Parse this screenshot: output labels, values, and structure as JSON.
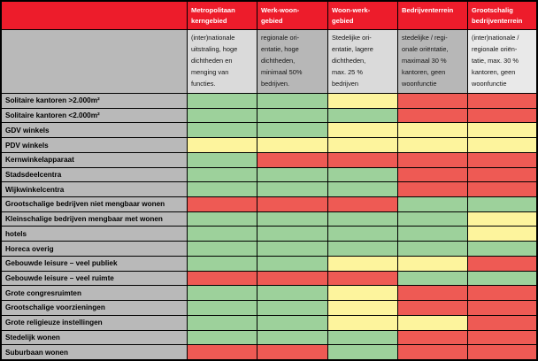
{
  "palette": {
    "header_red": "#ed1c2b",
    "label_gray": "#b9b9b9",
    "green": "#9dd19b",
    "yellow": "#fdf49d",
    "red": "#ee5a54",
    "border": "#000000"
  },
  "table": {
    "columns": [
      {
        "title": "Metropolitaan\nkerngebied",
        "description": "(inter)nationale\nuitstraling, hoge\ndichtheden en\nmenging van\nfuncties.",
        "desc_bg": "#dadada"
      },
      {
        "title": "Werk-woon-\ngebied",
        "description": "regionale ori-\nentatie, hoge\ndichtheden,\nminimaal 50%\nbedrijven.",
        "desc_bg": "#b7b7b7"
      },
      {
        "title": "Woon-werk-\ngebied",
        "description": "Stedelijke ori-\nentatie, lagere\ndichtheden,\nmax. 25 %\nbedrijven",
        "desc_bg": "#dadada"
      },
      {
        "title": "Bedrijventerrein",
        "description": "stedelijke / regi-\nonale oriëntatie,\nmaximaal 30 %\nkantoren, geen\nwoonfunctie",
        "desc_bg": "#b7b7b7"
      },
      {
        "title": "Grootschalig\nbedrijventerrein",
        "description": "(inter)nationale /\nregionale oriën-\ntatie, max. 30 %\nkantoren, geen\nwoonfunctie",
        "desc_bg": "#e9e9e9"
      }
    ],
    "rows": [
      {
        "label": "Solitaire kantoren >2.000m²",
        "cells": [
          "green",
          "green",
          "yellow",
          "red",
          "red"
        ]
      },
      {
        "label": "Solitaire kantoren <2.000m²",
        "cells": [
          "green",
          "green",
          "green",
          "red",
          "red"
        ]
      },
      {
        "label": "GDV winkels",
        "cells": [
          "green",
          "green",
          "yellow",
          "yellow",
          "yellow"
        ]
      },
      {
        "label": "PDV winkels",
        "cells": [
          "yellow",
          "yellow",
          "yellow",
          "yellow",
          "yellow"
        ]
      },
      {
        "label": "Kernwinkelapparaat",
        "cells": [
          "green",
          "red",
          "red",
          "red",
          "red"
        ]
      },
      {
        "label": "Stadsdeelcentra",
        "cells": [
          "green",
          "green",
          "green",
          "red",
          "red"
        ]
      },
      {
        "label": "Wijkwinkelcentra",
        "cells": [
          "green",
          "green",
          "green",
          "red",
          "red"
        ]
      },
      {
        "label": "Grootschalige bedrijven niet mengbaar wonen",
        "cells": [
          "red",
          "red",
          "red",
          "green",
          "green"
        ]
      },
      {
        "label": "Kleinschalige bedrijven mengbaar met wonen",
        "cells": [
          "green",
          "green",
          "green",
          "green",
          "yellow"
        ]
      },
      {
        "label": "hotels",
        "cells": [
          "green",
          "green",
          "green",
          "green",
          "yellow"
        ]
      },
      {
        "label": "Horeca overig",
        "cells": [
          "green",
          "green",
          "green",
          "green",
          "green"
        ]
      },
      {
        "label": "Gebouwde leisure – veel publiek",
        "cells": [
          "green",
          "green",
          "yellow",
          "yellow",
          "red"
        ]
      },
      {
        "label": "Gebouwde leisure – veel ruimte",
        "cells": [
          "red",
          "red",
          "red",
          "green",
          "green"
        ]
      },
      {
        "label": "Grote congresruimten",
        "cells": [
          "green",
          "green",
          "yellow",
          "red",
          "red"
        ]
      },
      {
        "label": "Grootschalige voorzieningen",
        "cells": [
          "green",
          "green",
          "yellow",
          "red",
          "red"
        ]
      },
      {
        "label": "Grote religieuze instellingen",
        "cells": [
          "green",
          "green",
          "yellow",
          "yellow",
          "red"
        ]
      },
      {
        "label": "Stedelijk wonen",
        "cells": [
          "green",
          "green",
          "green",
          "red",
          "red"
        ]
      },
      {
        "label": "Suburbaan wonen",
        "cells": [
          "red",
          "red",
          "green",
          "red",
          "red"
        ]
      }
    ]
  }
}
